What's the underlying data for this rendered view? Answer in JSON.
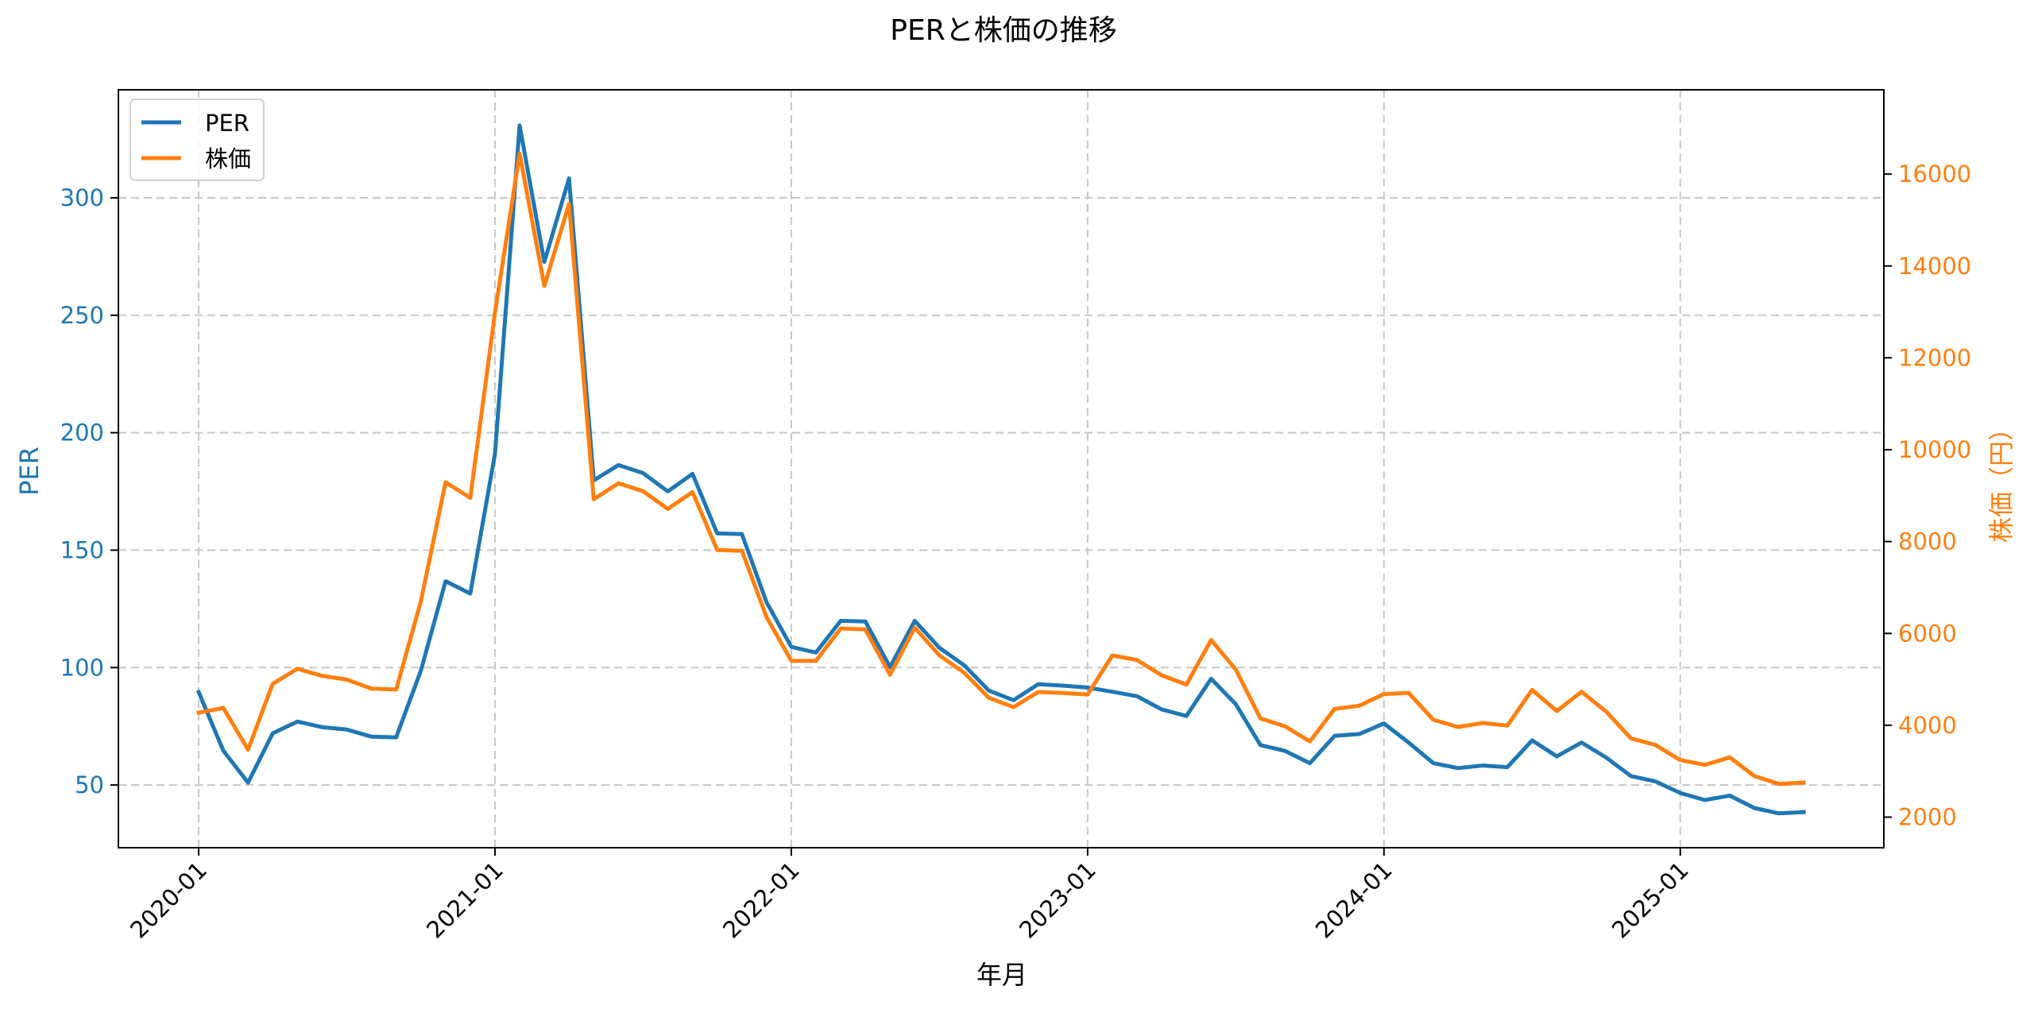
{
  "chart_data": {
    "type": "line",
    "title": "PERと株価の推移",
    "xlabel": "年月",
    "ylabel": "PER",
    "ylabel_right": "株価（円）",
    "grid": true,
    "legend_position": "upper left",
    "x_tick_labels": [
      "2020-01",
      "2021-01",
      "2022-01",
      "2023-01",
      "2024-01",
      "2025-01"
    ],
    "y_ticks_left": [
      50,
      100,
      150,
      200,
      250,
      300
    ],
    "y_ticks_right": [
      2000,
      4000,
      6000,
      8000,
      10000,
      12000,
      14000,
      16000
    ],
    "ylim_left": [
      23.3,
      346
    ],
    "ylim_right": [
      1334,
      17836
    ],
    "x": [
      "2020-01",
      "2020-02",
      "2020-03",
      "2020-04",
      "2020-05",
      "2020-06",
      "2020-07",
      "2020-08",
      "2020-09",
      "2020-10",
      "2020-11",
      "2020-12",
      "2021-01",
      "2021-02",
      "2021-03",
      "2021-04",
      "2021-05",
      "2021-06",
      "2021-07",
      "2021-08",
      "2021-09",
      "2021-10",
      "2021-11",
      "2021-12",
      "2022-01",
      "2022-02",
      "2022-03",
      "2022-04",
      "2022-05",
      "2022-06",
      "2022-07",
      "2022-08",
      "2022-09",
      "2022-10",
      "2022-11",
      "2022-12",
      "2023-01",
      "2023-02",
      "2023-03",
      "2023-04",
      "2023-05",
      "2023-06",
      "2023-07",
      "2023-08",
      "2023-09",
      "2023-10",
      "2023-11",
      "2023-12",
      "2024-01",
      "2024-02",
      "2024-03",
      "2024-04",
      "2024-05",
      "2024-06",
      "2024-07",
      "2024-08",
      "2024-09",
      "2024-10",
      "2024-11",
      "2024-12",
      "2025-01",
      "2025-02",
      "2025-03",
      "2025-04",
      "2025-05",
      "2025-06"
    ],
    "series": [
      {
        "name": "PER",
        "axis": "left",
        "color": "#1f77b4",
        "values": [
          89.6,
          64.6,
          51.0,
          72.0,
          77.0,
          74.6,
          73.6,
          70.6,
          70.3,
          98.7,
          136.8,
          131.5,
          191.0,
          330.8,
          272.7,
          308.3,
          179.7,
          186.2,
          182.8,
          175.0,
          182.5,
          157.1,
          156.8,
          127.8,
          108.8,
          106.4,
          119.9,
          119.6,
          100.2,
          119.9,
          108.4,
          101.0,
          90.2,
          86.1,
          92.9,
          92.3,
          91.5,
          89.7,
          87.8,
          82.2,
          79.4,
          95.2,
          84.4,
          67.0,
          64.5,
          59.3,
          70.9,
          71.7,
          76.2,
          68.1,
          59.3,
          57.2,
          58.3,
          57.6,
          69.0,
          62.2,
          68.1,
          61.7,
          53.8,
          51.5,
          46.6,
          43.6,
          45.5,
          40.2,
          37.9,
          38.5
        ]
      },
      {
        "name": "株価",
        "axis": "right",
        "color": "#ff7f0e",
        "values": [
          4273,
          4378,
          3469,
          4903,
          5230,
          5076,
          4994,
          4797,
          4778,
          6697,
          9291,
          8950,
          12988,
          16447,
          13564,
          15351,
          8923,
          9269,
          9096,
          8709,
          9078,
          7816,
          7798,
          6356,
          5404,
          5404,
          6108,
          6086,
          5100,
          6126,
          5520,
          5145,
          4598,
          4396,
          4724,
          4702,
          4670,
          5520,
          5422,
          5088,
          4886,
          5855,
          5214,
          4148,
          3975,
          3647,
          4356,
          4425,
          4680,
          4705,
          4119,
          3963,
          4050,
          3993,
          4771,
          4309,
          4730,
          4297,
          3716,
          3571,
          3242,
          3138,
          3301,
          2896,
          2723,
          2752
        ]
      }
    ]
  },
  "colors": {
    "per": "#1f77b4",
    "price": "#ff7f0e",
    "grid": "#c8c8c8",
    "axis": "#000000"
  }
}
